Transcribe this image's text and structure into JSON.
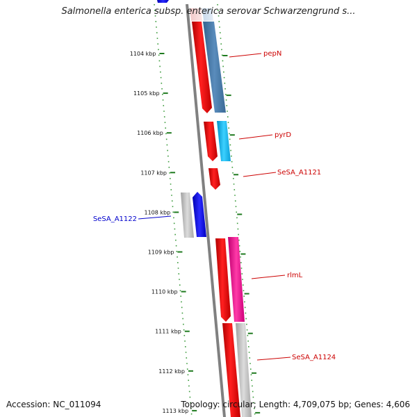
{
  "title": "Salmonella enterica subsp. enterica serovar Schwarzengrund s...",
  "footer": {
    "accession": "Accession: NC_011094",
    "summary": "Topology: circular; Length: 4,709,075 bp; Genes: 4,606"
  },
  "scale": {
    "unit": "kbp",
    "ticks": [
      "1104 kbp",
      "1105 kbp",
      "1106 kbp",
      "1107 kbp",
      "1108 kbp",
      "1109 kbp",
      "1110 kbp",
      "1111 kbp",
      "1112 kbp",
      "1113 kbp"
    ]
  },
  "genes": [
    {
      "label": "pepN",
      "color": "#cc0000"
    },
    {
      "label": "pyrD",
      "color": "#cc0000"
    },
    {
      "label": "SeSA_A1121",
      "color": "#cc0000"
    },
    {
      "label": "SeSA_A1122",
      "color": "#0000cc"
    },
    {
      "label": "rlmL",
      "color": "#cc0000"
    },
    {
      "label": "SeSA_A1124",
      "color": "#cc0000"
    }
  ],
  "colors": {
    "ruler": "#2e8b2e",
    "backbone": "#808080",
    "forward_strand": "#ff0000",
    "reverse_strand": "#0000ff",
    "pepN_track": "#4f81b4",
    "pyrD_track": "#22b8e8",
    "rlmL_track": "#e8148c",
    "grey_track": "#bdbdbd"
  }
}
